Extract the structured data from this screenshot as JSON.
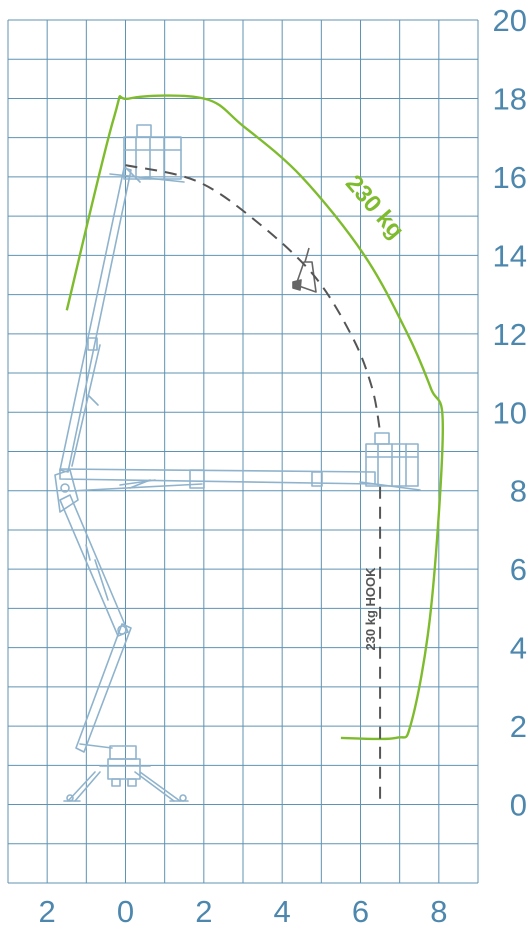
{
  "chart_data": {
    "type": "working-envelope",
    "x_ticks": [
      "2",
      "0",
      "2",
      "4",
      "6",
      "8"
    ],
    "y_ticks": [
      "20",
      "18",
      "16",
      "14",
      "12",
      "10",
      "8",
      "6",
      "4",
      "2",
      "0"
    ],
    "x_range_m": [
      -3,
      9
    ],
    "y_range_m": [
      -2,
      20
    ],
    "grid": true,
    "grid_step_m": 1,
    "envelope_label": "230 kg",
    "hook_label": "230 kg HOOK",
    "hook_x_m": 6.5,
    "max_height_m": 18,
    "envelope_points_m": [
      [
        -1.5,
        12.6
      ],
      [
        -0.3,
        17.5
      ],
      [
        0.1,
        18.0
      ],
      [
        2.0,
        18.0
      ],
      [
        3.0,
        17.3
      ],
      [
        4.5,
        16.0
      ],
      [
        6.1,
        14.0
      ],
      [
        7.2,
        12.0
      ],
      [
        7.8,
        10.6
      ],
      [
        8.1,
        9.6
      ],
      [
        7.8,
        5.0
      ],
      [
        7.3,
        2.1
      ],
      [
        6.9,
        1.7
      ],
      [
        5.5,
        1.7
      ]
    ],
    "reach_arc_points_m": [
      [
        0.0,
        16.3
      ],
      [
        1.8,
        15.9
      ],
      [
        3.3,
        14.9
      ],
      [
        4.8,
        13.5
      ],
      [
        5.8,
        11.9
      ],
      [
        6.3,
        10.6
      ],
      [
        6.5,
        9.5
      ]
    ],
    "colors": {
      "grid": "#5f93b3",
      "tick_labels": "#4d87ad",
      "envelope": "#7ebc2e",
      "machine": "#8fb3cd",
      "dashes": "#555555"
    }
  }
}
